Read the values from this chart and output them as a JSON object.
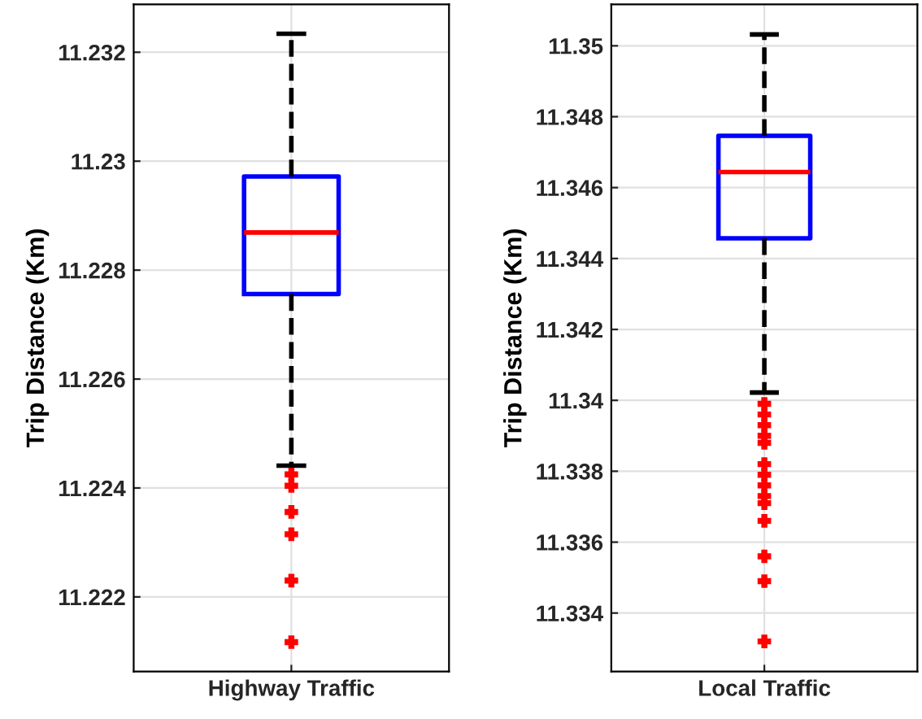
{
  "chart_data": [
    {
      "type": "box",
      "categories": [
        "Highway Traffic"
      ],
      "ylabel": "Trip Distance (Km)",
      "ylim": [
        11.22063,
        11.23288
      ],
      "yticks": [
        11.222,
        11.224,
        11.226,
        11.228,
        11.23,
        11.232
      ],
      "grid": true,
      "marker": "cross",
      "line_style": "dashed",
      "series": [
        {
          "color": "#0000ff",
          "boxes": [
            {
              "low": 11.22441,
              "q1": 11.22756,
              "median": 11.22869,
              "q3": 11.22972,
              "high": 11.23234,
              "outliers": [
                11.22425,
                11.22404,
                11.22356,
                11.22315,
                11.2223,
                11.22117
              ]
            }
          ]
        }
      ]
    },
    {
      "type": "box",
      "categories": [
        "Local Traffic"
      ],
      "ylabel": "Trip Distance (Km)",
      "ylim": [
        11.33235,
        11.35117
      ],
      "yticks": [
        11.334,
        11.336,
        11.338,
        11.34,
        11.342,
        11.344,
        11.346,
        11.348,
        11.35
      ],
      "grid": true,
      "marker": "cross",
      "line_style": "dashed",
      "series": [
        {
          "color": "#0000ff",
          "boxes": [
            {
              "low": 11.34022,
              "q1": 11.34457,
              "median": 11.34644,
              "q3": 11.34746,
              "high": 11.35032,
              "outliers": [
                11.3399,
                11.3396,
                11.3393,
                11.339,
                11.3388,
                11.3382,
                11.3379,
                11.3376,
                11.3373,
                11.3371,
                11.3366,
                11.3356,
                11.3349,
                11.3332
              ]
            }
          ]
        }
      ]
    }
  ]
}
